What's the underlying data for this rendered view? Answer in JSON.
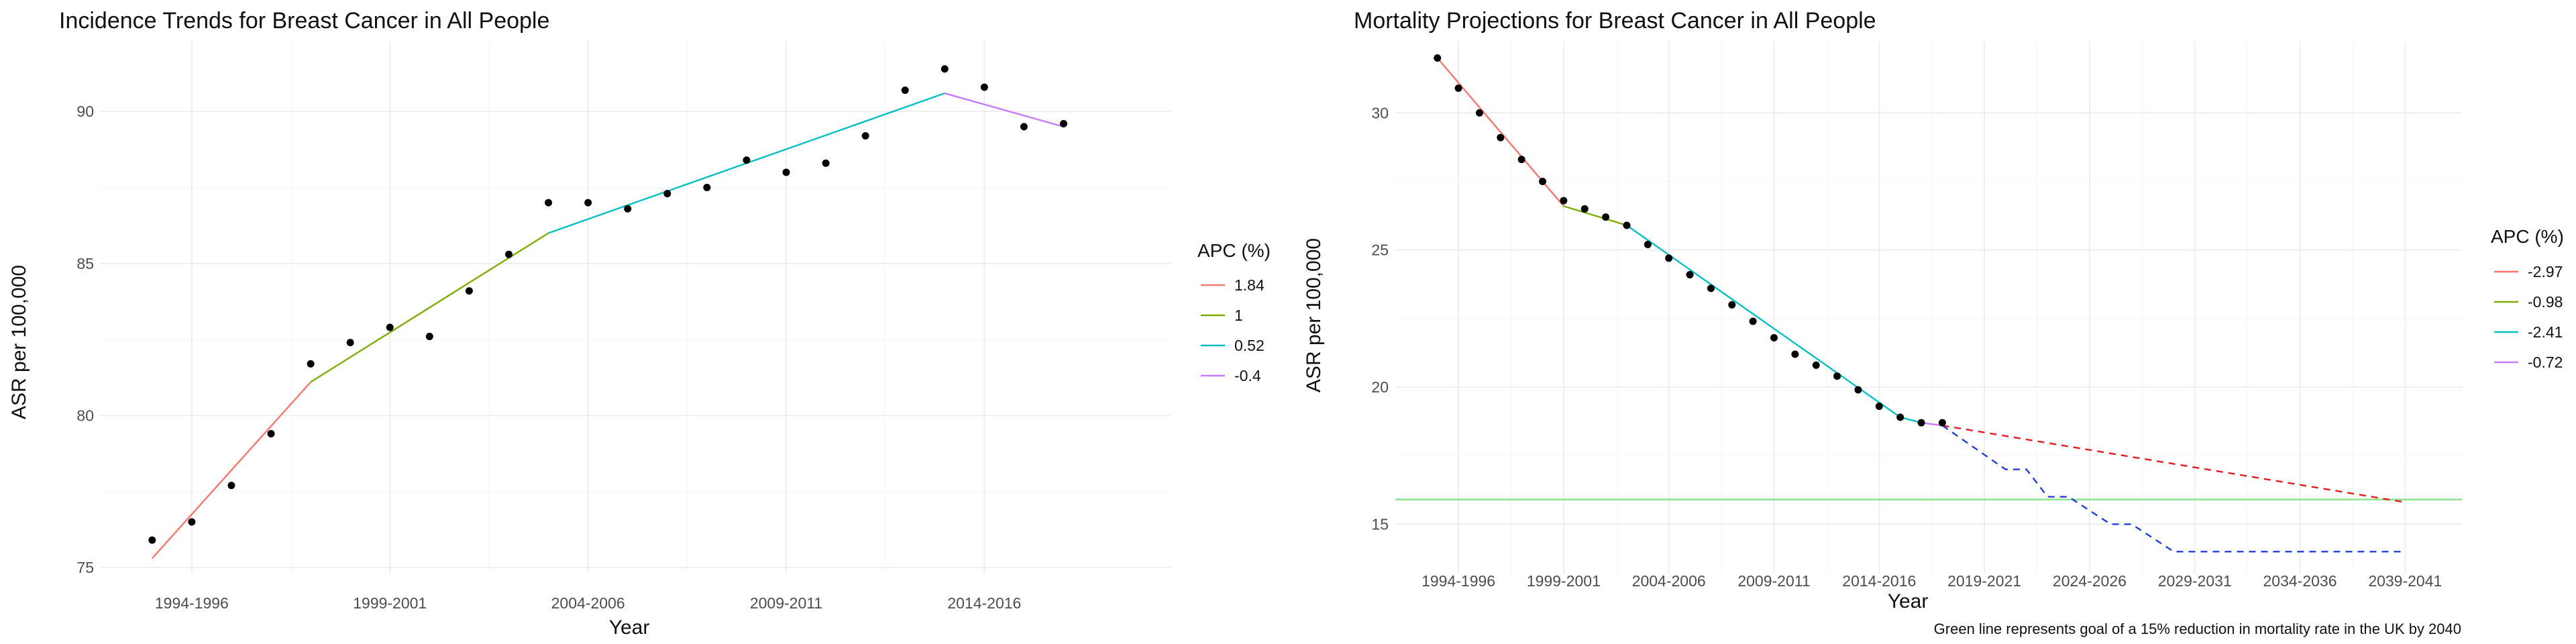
{
  "chart_data": [
    {
      "type": "line",
      "title": "Incidence Trends for Breast Cancer in All People",
      "xlabel": "Year",
      "ylabel": "ASR per 100,000",
      "x_tick_labels": [
        "1994-1996",
        "1999-2001",
        "2004-2006",
        "2009-2011",
        "2014-2016"
      ],
      "x_tick_years": [
        1995,
        2000,
        2005,
        2010,
        2015
      ],
      "xlim": [
        1992.7,
        2019.7
      ],
      "ylim": [
        74.8,
        92.3
      ],
      "y_ticks": [
        75,
        80,
        85,
        90
      ],
      "grid": true,
      "legend": {
        "title": "APC (%)",
        "position": "right"
      },
      "points": [
        {
          "x": 1994,
          "y": 75.9
        },
        {
          "x": 1995,
          "y": 76.5
        },
        {
          "x": 1996,
          "y": 77.7
        },
        {
          "x": 1997,
          "y": 79.4
        },
        {
          "x": 1998,
          "y": 81.7
        },
        {
          "x": 1999,
          "y": 82.4
        },
        {
          "x": 2000,
          "y": 82.9
        },
        {
          "x": 2001,
          "y": 82.6
        },
        {
          "x": 2002,
          "y": 84.1
        },
        {
          "x": 2003,
          "y": 85.3
        },
        {
          "x": 2004,
          "y": 87.0
        },
        {
          "x": 2005,
          "y": 87.0
        },
        {
          "x": 2006,
          "y": 86.8
        },
        {
          "x": 2007,
          "y": 87.3
        },
        {
          "x": 2008,
          "y": 87.5
        },
        {
          "x": 2009,
          "y": 88.4
        },
        {
          "x": 2010,
          "y": 88.0
        },
        {
          "x": 2011,
          "y": 88.3
        },
        {
          "x": 2012,
          "y": 89.2
        },
        {
          "x": 2013,
          "y": 90.7
        },
        {
          "x": 2014,
          "y": 91.4
        },
        {
          "x": 2015,
          "y": 90.8
        },
        {
          "x": 2016,
          "y": 89.5
        },
        {
          "x": 2017,
          "y": 89.6
        }
      ],
      "series": [
        {
          "name": "1.84",
          "color": "#F8766D",
          "style": "solid",
          "x": [
            1994,
            1998
          ],
          "y": [
            75.3,
            81.1
          ]
        },
        {
          "name": "1",
          "color": "#7CAE00",
          "style": "solid",
          "x": [
            1998,
            2004
          ],
          "y": [
            81.1,
            86.0
          ]
        },
        {
          "name": "0.52",
          "color": "#00BFC4",
          "style": "solid",
          "x": [
            2004,
            2014
          ],
          "y": [
            86.0,
            90.6
          ]
        },
        {
          "name": "-0.4",
          "color": "#C77CFF",
          "style": "solid",
          "x": [
            2014,
            2017
          ],
          "y": [
            90.6,
            89.5
          ]
        }
      ]
    },
    {
      "type": "line",
      "title": "Mortality Projections for Breast Cancer in All People",
      "xlabel": "Year",
      "ylabel": "ASR per 100,000",
      "caption": "Green line represents goal of a 15% reduction in mortality rate in the UK by 2040",
      "x_tick_labels": [
        "1994-1996",
        "1999-2001",
        "2004-2006",
        "2009-2011",
        "2014-2016",
        "2019-2021",
        "2024-2026",
        "2029-2031",
        "2034-2036",
        "2039-2041"
      ],
      "x_tick_years": [
        1995,
        2000,
        2005,
        2010,
        2015,
        2020,
        2025,
        2030,
        2035,
        2040
      ],
      "xlim": [
        1992.0,
        2042.7
      ],
      "ylim": [
        13.2,
        32.6
      ],
      "y_ticks": [
        15,
        20,
        25,
        30
      ],
      "grid": true,
      "legend": {
        "title": "APC (%)",
        "position": "right"
      },
      "points": [
        {
          "x": 1994,
          "y": 32.0
        },
        {
          "x": 1995,
          "y": 30.9
        },
        {
          "x": 1996,
          "y": 30.0
        },
        {
          "x": 1997,
          "y": 29.1
        },
        {
          "x": 1998,
          "y": 28.3
        },
        {
          "x": 1999,
          "y": 27.5
        },
        {
          "x": 2000,
          "y": 26.8
        },
        {
          "x": 2001,
          "y": 26.5
        },
        {
          "x": 2002,
          "y": 26.2
        },
        {
          "x": 2003,
          "y": 25.9
        },
        {
          "x": 2004,
          "y": 25.2
        },
        {
          "x": 2005,
          "y": 24.7
        },
        {
          "x": 2006,
          "y": 24.1
        },
        {
          "x": 2007,
          "y": 23.6
        },
        {
          "x": 2008,
          "y": 23.0
        },
        {
          "x": 2009,
          "y": 22.4
        },
        {
          "x": 2010,
          "y": 21.8
        },
        {
          "x": 2011,
          "y": 21.2
        },
        {
          "x": 2012,
          "y": 20.8
        },
        {
          "x": 2013,
          "y": 20.4
        },
        {
          "x": 2014,
          "y": 19.9
        },
        {
          "x": 2015,
          "y": 19.3
        },
        {
          "x": 2016,
          "y": 18.9
        },
        {
          "x": 2017,
          "y": 18.7
        },
        {
          "x": 2018,
          "y": 18.7
        }
      ],
      "series": [
        {
          "name": "-2.97",
          "color": "#F8766D",
          "style": "solid",
          "x": [
            1994,
            2000
          ],
          "y": [
            32.0,
            26.6
          ]
        },
        {
          "name": "-0.98",
          "color": "#7CAE00",
          "style": "solid",
          "x": [
            2000,
            2003
          ],
          "y": [
            26.6,
            25.9
          ]
        },
        {
          "name": "-2.41",
          "color": "#00BFC4",
          "style": "solid",
          "x": [
            2003,
            2016,
            2017
          ],
          "y": [
            25.9,
            18.9,
            18.7
          ]
        },
        {
          "name": "-0.72",
          "color": "#C77CFF",
          "style": "solid",
          "x": [
            2017,
            2018
          ],
          "y": [
            18.7,
            18.6
          ]
        }
      ],
      "projections": [
        {
          "color": "#E41A1C",
          "style": "dashed",
          "x": [
            2018,
            2040
          ],
          "y": [
            18.6,
            15.8
          ]
        },
        {
          "color": "#1F3FD8",
          "style": "dashed",
          "x": [
            2018,
            2021,
            2022,
            2023,
            2024,
            2026,
            2027,
            2029,
            2030,
            2040
          ],
          "y": [
            18.6,
            17.0,
            17.0,
            16.0,
            16.0,
            15.0,
            15.0,
            14.0,
            14.0,
            14.0
          ]
        }
      ],
      "goal_line": {
        "y": 15.9,
        "color": "#8BE38B"
      }
    }
  ]
}
